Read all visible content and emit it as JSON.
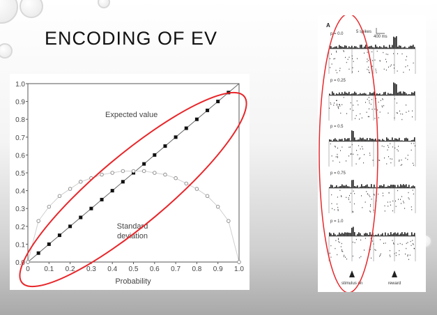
{
  "slide": {
    "title": "ENCODING OF EV"
  },
  "chart_data": {
    "type": "scatter",
    "xlabel": "Probability",
    "ylabel": "",
    "xlim": [
      0,
      1
    ],
    "ylim": [
      0,
      1
    ],
    "x_ticks": [
      "0",
      "0.1",
      "0.2",
      "0.3",
      "0.4",
      "0.5",
      "0.6",
      "0.7",
      "0.8",
      "0.9",
      "1.0"
    ],
    "y_ticks": [
      "0.0",
      "0.1",
      "0.2",
      "0.3",
      "0.4",
      "0.5",
      "0.6",
      "0.7",
      "0.8",
      "0.9",
      "1.0"
    ],
    "grid": false,
    "annotations": [
      "Expected value",
      "Standard deviation"
    ],
    "series": [
      {
        "label_ref": "Expected value",
        "marker": "filled-square",
        "color": "#111111",
        "x": [
          0,
          0.05,
          0.1,
          0.15,
          0.2,
          0.25,
          0.3,
          0.35,
          0.4,
          0.45,
          0.5,
          0.55,
          0.6,
          0.65,
          0.7,
          0.75,
          0.8,
          0.85,
          0.9,
          0.95,
          1.0
        ],
        "y": [
          0,
          0.05,
          0.1,
          0.15,
          0.2,
          0.25,
          0.3,
          0.35,
          0.4,
          0.45,
          0.5,
          0.55,
          0.6,
          0.65,
          0.7,
          0.75,
          0.8,
          0.85,
          0.9,
          0.95,
          1.0
        ]
      },
      {
        "label_ref": "Standard deviation",
        "marker": "open-circle",
        "color": "#888888",
        "x": [
          0,
          0.05,
          0.1,
          0.15,
          0.2,
          0.25,
          0.3,
          0.35,
          0.4,
          0.45,
          0.5,
          0.55,
          0.6,
          0.65,
          0.7,
          0.75,
          0.8,
          0.85,
          0.9,
          0.95,
          1.0
        ],
        "y": [
          0,
          0.23,
          0.31,
          0.37,
          0.41,
          0.45,
          0.47,
          0.49,
          0.5,
          0.51,
          0.51,
          0.51,
          0.5,
          0.49,
          0.47,
          0.44,
          0.41,
          0.37,
          0.31,
          0.23,
          0
        ]
      }
    ],
    "highlight_color": "#e8262a"
  },
  "raster": {
    "panel_label": "A",
    "scale_spikes": "5 spikes",
    "scale_time": "400 ms",
    "conditions": [
      "p = 0.0",
      "p = 0.25",
      "p = 0.5",
      "p = 0.75",
      "p = 1.0"
    ],
    "events": [
      "stimulus on",
      "reward"
    ]
  }
}
